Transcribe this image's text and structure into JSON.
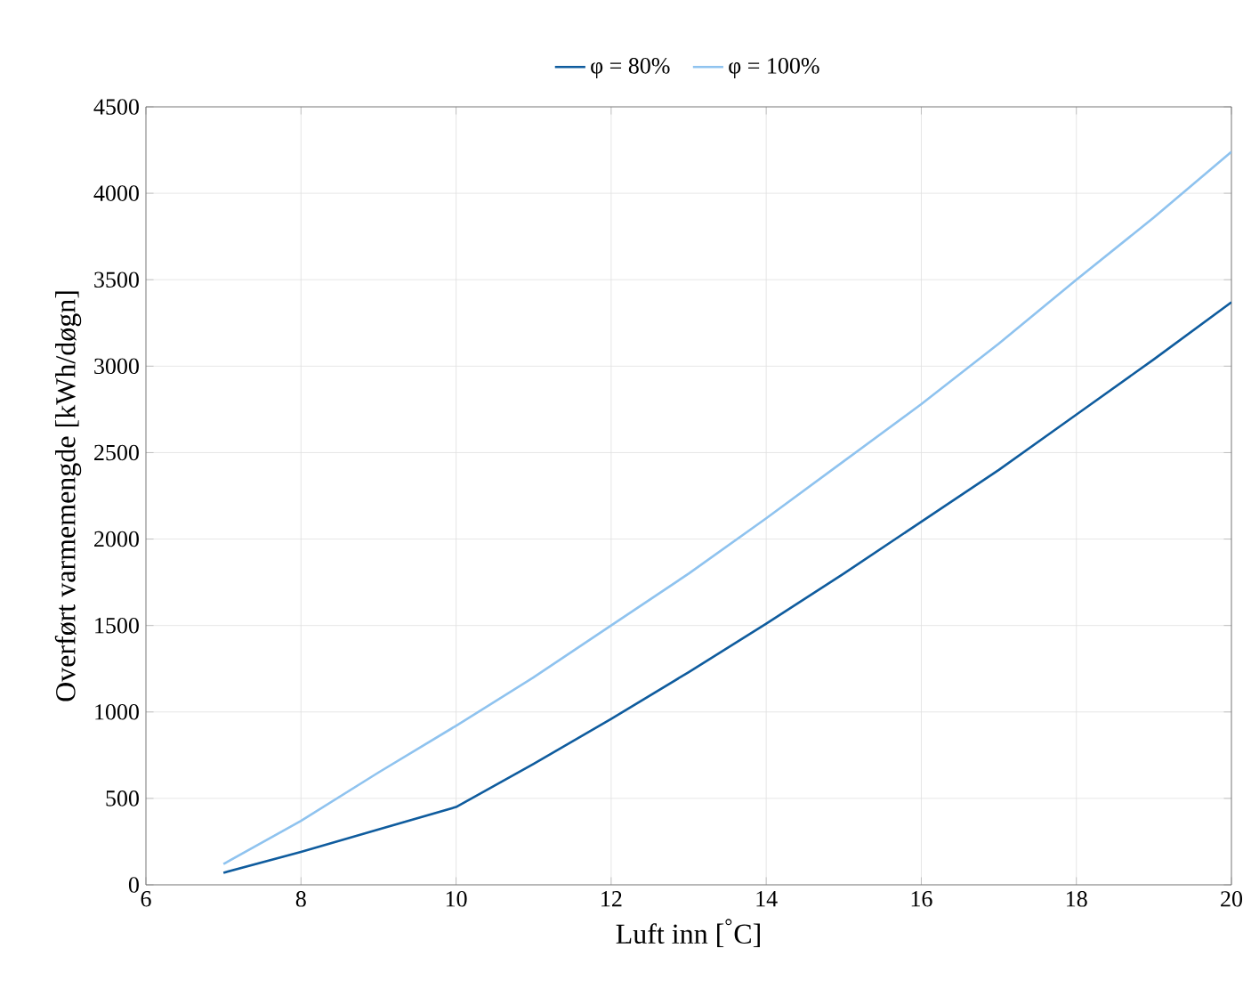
{
  "chart_data": {
    "type": "line",
    "xlabel": "Luft inn [$^{°}$C]",
    "ylabel": "Overført varmemengde [kWh/døgn]",
    "x": [
      7,
      8,
      9,
      10,
      11,
      12,
      13,
      14,
      15,
      16,
      17,
      18,
      19,
      20
    ],
    "series": [
      {
        "name": "φ = 80%",
        "color": "#0f5c9e",
        "values": [
          70,
          190,
          320,
          450,
          700,
          960,
          1230,
          1510,
          1800,
          2100,
          2400,
          2720,
          3040,
          3370
        ]
      },
      {
        "name": "φ = 100%",
        "color": "#8fc3ef",
        "values": [
          120,
          370,
          650,
          920,
          1200,
          1500,
          1800,
          2120,
          2450,
          2780,
          3130,
          3500,
          3860,
          4240
        ]
      }
    ],
    "xlim": [
      6,
      20
    ],
    "ylim": [
      0,
      4500
    ],
    "xticks": [
      6,
      8,
      10,
      12,
      14,
      16,
      18,
      20
    ],
    "yticks": [
      0,
      500,
      1000,
      1500,
      2000,
      2500,
      3000,
      3500,
      4000,
      4500
    ],
    "grid": true,
    "legend": "top",
    "marker": "none",
    "line_style": "solid"
  }
}
